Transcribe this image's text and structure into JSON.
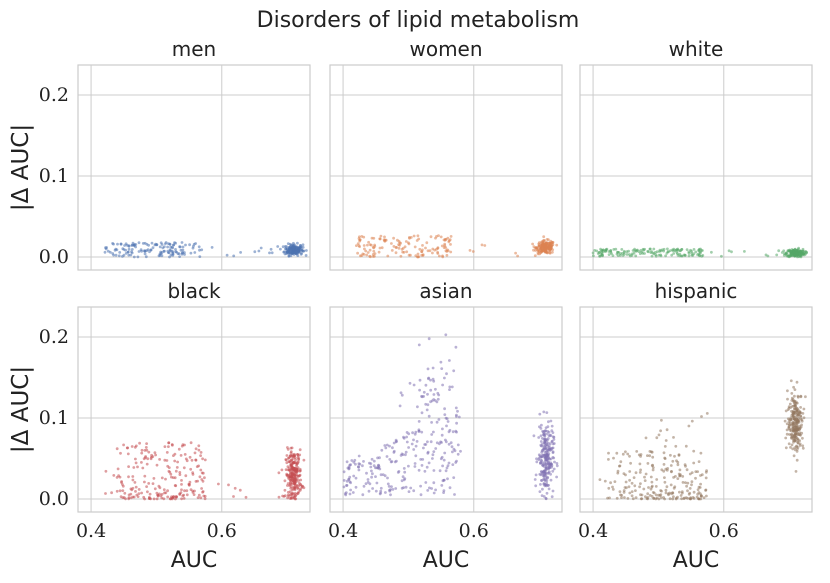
{
  "chart_data": {
    "type": "scatter",
    "title": "Disorders of lipid metabolism",
    "xlabel": "AUC",
    "ylabel": "|Δ AUC|",
    "xlim": [
      0.38,
      0.735
    ],
    "ylim": [
      -0.016,
      0.237
    ],
    "xticks": [
      0.4,
      0.6
    ],
    "xtick_labels": [
      "0.4",
      "0.6"
    ],
    "yticks": [
      0.0,
      0.1,
      0.2
    ],
    "ytick_labels": [
      "0.0",
      "0.1",
      "0.2"
    ],
    "grid": true,
    "panels": [
      {
        "name": "men",
        "color": "#4c72b0",
        "clusters": [
          {
            "n": 140,
            "x": [
              0.42,
              0.57
            ],
            "y": [
              0.0,
              0.018
            ],
            "shape": "uniform"
          },
          {
            "n": 10,
            "x": [
              0.58,
              0.7
            ],
            "y": [
              0.0,
              0.012
            ],
            "shape": "uniform"
          },
          {
            "n": 180,
            "x": [
              0.71,
              0.007
            ],
            "y": [
              0.009,
              0.0035
            ],
            "shape": "normal"
          }
        ]
      },
      {
        "name": "women",
        "color": "#dd8452",
        "clusters": [
          {
            "n": 140,
            "x": [
              0.42,
              0.57
            ],
            "y": [
              0.0,
              0.027
            ],
            "shape": "uniform"
          },
          {
            "n": 10,
            "x": [
              0.58,
              0.7
            ],
            "y": [
              0.0,
              0.015
            ],
            "shape": "uniform"
          },
          {
            "n": 180,
            "x": [
              0.71,
              0.007
            ],
            "y": [
              0.012,
              0.004
            ],
            "shape": "normal"
          }
        ]
      },
      {
        "name": "white",
        "color": "#55a868",
        "clusters": [
          {
            "n": 150,
            "x": [
              0.4,
              0.57
            ],
            "y": [
              0.001,
              0.01
            ],
            "shape": "uniform"
          },
          {
            "n": 10,
            "x": [
              0.58,
              0.7
            ],
            "y": [
              0.0,
              0.008
            ],
            "shape": "uniform"
          },
          {
            "n": 180,
            "x": [
              0.71,
              0.007
            ],
            "y": [
              0.005,
              0.0025
            ],
            "shape": "normal"
          }
        ]
      },
      {
        "name": "black",
        "color": "#c44e52",
        "clusters": [
          {
            "n": 220,
            "x": [
              0.42,
              0.575
            ],
            "y": [
              0.0,
              0.07
            ],
            "shape": "skew"
          },
          {
            "n": 8,
            "x": [
              0.58,
              0.7
            ],
            "y": [
              0.0,
              0.02
            ],
            "shape": "uniform"
          },
          {
            "n": 240,
            "x": [
              0.71,
              0.006
            ],
            "y": [
              0.03,
              0.015
            ],
            "shape": "normal"
          }
        ]
      },
      {
        "name": "asian",
        "color": "#8172b3",
        "clusters": [
          {
            "n": 230,
            "x": [
              0.4,
              0.58
            ],
            "y": [
              0.005,
              0.115
            ],
            "shape": "wedge"
          },
          {
            "n": 60,
            "x": [
              0.54,
              0.02
            ],
            "y": [
              0.13,
              0.025
            ],
            "shape": "normal"
          },
          {
            "n": 240,
            "x": [
              0.71,
              0.006
            ],
            "y": [
              0.05,
              0.022
            ],
            "shape": "normal"
          }
        ]
      },
      {
        "name": "hispanic",
        "color": "#937860",
        "clusters": [
          {
            "n": 220,
            "x": [
              0.41,
              0.575
            ],
            "y": [
              0.0,
              0.06
            ],
            "shape": "skew"
          },
          {
            "n": 15,
            "x": [
              0.48,
              0.58
            ],
            "y": [
              0.06,
              0.115
            ],
            "shape": "uniform"
          },
          {
            "n": 240,
            "x": [
              0.71,
              0.006
            ],
            "y": [
              0.095,
              0.018
            ],
            "shape": "normal"
          }
        ]
      }
    ]
  }
}
